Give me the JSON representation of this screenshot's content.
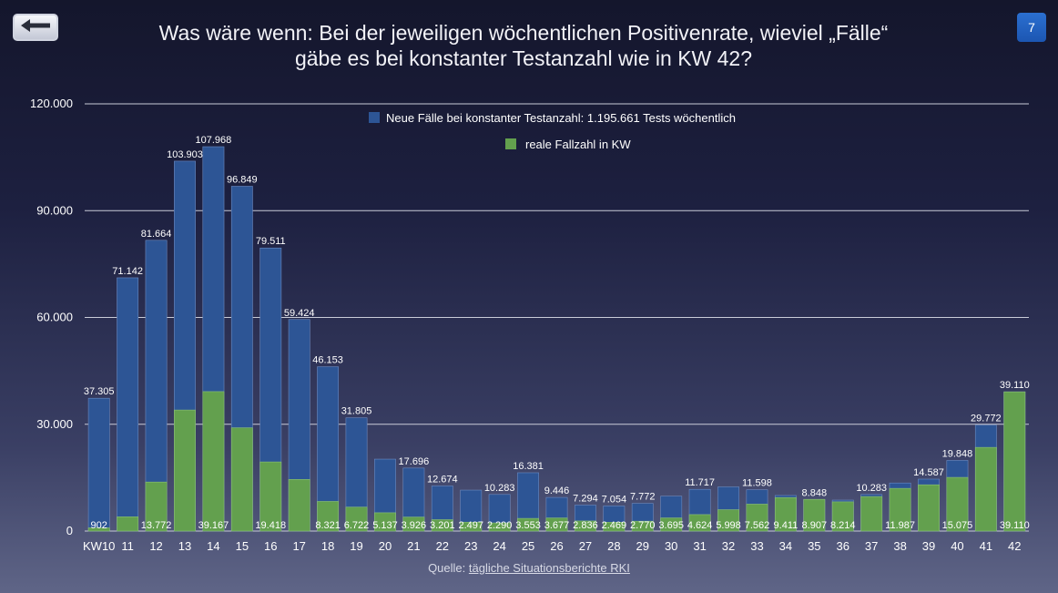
{
  "header": {
    "title_line1": "Was wäre wenn: Bei der jeweiligen wöchentlichen Positivenrate, wieviel „Fälle“",
    "title_line2": "gäbe es bei konstanter Testanzahl wie in KW 42?",
    "page_number": "7",
    "back_icon": "arrow-left-icon"
  },
  "footer": {
    "source_prefix": "Quelle: ",
    "source_link": "tägliche Situationsberichte RKI"
  },
  "colors": {
    "blue": "#2d5595",
    "green": "#63a04e",
    "grid": "#c9ccd8"
  },
  "chart_data": {
    "type": "bar",
    "title": "Was wäre wenn: Bei der jeweiligen wöchentlichen Positivenrate, wieviel „Fälle“ gäbe es bei konstanter Testanzahl wie in KW 42?",
    "xlabel": "",
    "ylabel": "",
    "ylim": [
      0,
      120000
    ],
    "yticks": [
      0,
      30000,
      60000,
      90000,
      120000
    ],
    "ytick_labels": [
      "0",
      "30.000",
      "60.000",
      "90.000",
      "120.000"
    ],
    "grid": true,
    "legend_position": "top-center",
    "categories": [
      "KW10",
      "11",
      "12",
      "13",
      "14",
      "15",
      "16",
      "17",
      "18",
      "19",
      "20",
      "21",
      "22",
      "23",
      "24",
      "25",
      "26",
      "27",
      "28",
      "29",
      "30",
      "31",
      "32",
      "33",
      "34",
      "35",
      "36",
      "37",
      "38",
      "39",
      "40",
      "41",
      "42"
    ],
    "series": [
      {
        "name": "Neue Fälle bei konstanter Testanzahl: 1.195.661 Tests wöchentlich",
        "color": "#2d5595",
        "values": [
          37305,
          71142,
          81664,
          103903,
          107968,
          96849,
          79511,
          59424,
          46153,
          31805,
          20200,
          17696,
          12674,
          11500,
          10283,
          16381,
          9446,
          7294,
          7054,
          7772,
          9800,
          11717,
          12400,
          11598,
          10000,
          8848,
          8700,
          10283,
          13500,
          14587,
          19848,
          29772,
          39110
        ],
        "labels": [
          "37.305",
          "71.142",
          "81.664",
          "103.903",
          "107.968",
          "96.849",
          "79.511",
          "59.424",
          "46.153",
          "31.805",
          "",
          "17.696",
          "12.674",
          "",
          "10.283",
          "16.381",
          "9.446",
          "7.294",
          "7.054",
          "7.772",
          "",
          "11.717",
          "",
          "11.598",
          "",
          "8.848",
          "",
          "10.283",
          "",
          "14.587",
          "19.848",
          "29.772",
          "39.110"
        ]
      },
      {
        "name": "reale Fallzahl in KW",
        "color": "#63a04e",
        "values": [
          902,
          4000,
          13772,
          34000,
          39167,
          29000,
          19418,
          14500,
          8321,
          6722,
          5137,
          3926,
          3201,
          2497,
          2290,
          3553,
          3677,
          2836,
          2469,
          2770,
          3695,
          4624,
          5998,
          7562,
          9411,
          8907,
          8214,
          9700,
          11987,
          13000,
          15075,
          23500,
          39110
        ],
        "labels": [
          "902",
          "",
          "13.772",
          "",
          "39.167",
          "",
          "19.418",
          "",
          "8.321",
          "6.722",
          "5.137",
          "3.926",
          "3.201",
          "2.497",
          "2.290",
          "3.553",
          "3.677",
          "2.836",
          "2.469",
          "2.770",
          "3.695",
          "4.624",
          "5.998",
          "7.562",
          "9.411",
          "8.907",
          "8.214",
          "",
          "11.987",
          "",
          "15.075",
          "",
          "39.110"
        ]
      }
    ]
  }
}
